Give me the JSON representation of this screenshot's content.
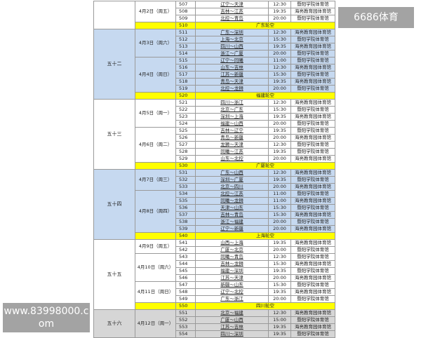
{
  "colors": {
    "blue": "#c6d9f0",
    "white": "#ffffff",
    "gray": "#d6d6d6",
    "rest": "#ffff00"
  },
  "watermarks": {
    "top_right": "6686体育",
    "bottom_left": "www.83998000.com"
  },
  "rounds": [
    {
      "round": "",
      "shade": "white",
      "dates": [
        {
          "date": "4月2日（周五）",
          "games": [
            {
              "no": "507",
              "match": "辽宁～天津",
              "time": "12:30",
              "venue": "暨阳学院体育馆"
            },
            {
              "no": "508",
              "match": "吉林～江苏",
              "time": "19:35",
              "venue": "海亮教育园体育馆"
            },
            {
              "no": "509",
              "match": "北控～青岛",
              "time": "20:00",
              "venue": "暨阳学院体育馆"
            }
          ]
        }
      ],
      "rest": {
        "no": "510",
        "team": "广东轮空"
      }
    },
    {
      "round": "五十二",
      "shade": "blue",
      "dates": [
        {
          "date": "4月3日（周六）",
          "games": [
            {
              "no": "511",
              "match": "广东～深圳",
              "time": "12:30",
              "venue": "海亮教育园体育馆"
            },
            {
              "no": "512",
              "match": "上海～北京",
              "time": "15:30",
              "venue": "暨阳学院体育馆"
            },
            {
              "no": "513",
              "match": "四川～山西",
              "time": "19:35",
              "venue": "海亮教育园体育馆"
            },
            {
              "no": "514",
              "match": "浙江～广厦",
              "time": "20:00",
              "venue": "暨阳学院体育馆"
            }
          ]
        },
        {
          "date": "4月4日（周日）",
          "games": [
            {
              "no": "515",
              "match": "辽宁～同曦",
              "time": "11:00",
              "venue": "暨阳学院体育馆"
            },
            {
              "no": "516",
              "match": "山东～吉林",
              "time": "12:30",
              "venue": "海亮教育园体育馆"
            },
            {
              "no": "517",
              "match": "江苏～新疆",
              "time": "15:30",
              "venue": "暨阳学院体育馆"
            },
            {
              "no": "518",
              "match": "青岛～天津",
              "time": "19:35",
              "venue": "海亮教育园体育馆"
            },
            {
              "no": "519",
              "match": "北控～龙狮",
              "time": "20:00",
              "venue": "暨阳学院体育馆"
            }
          ]
        }
      ],
      "rest": {
        "no": "520",
        "team": "福建轮空"
      }
    },
    {
      "round": "五十三",
      "shade": "white",
      "dates": [
        {
          "date": "4月5日（周一）",
          "games": [
            {
              "no": "521",
              "match": "四川～浙江",
              "time": "12:30",
              "venue": "海亮教育园体育馆"
            },
            {
              "no": "522",
              "match": "北京～广东",
              "time": "15:30",
              "venue": "暨阳学院体育馆"
            },
            {
              "no": "523",
              "match": "深圳～上海",
              "time": "19:35",
              "venue": "海亮教育园体育馆"
            },
            {
              "no": "524",
              "match": "福建～山西",
              "time": "20:00",
              "venue": "暨阳学院体育馆"
            }
          ]
        },
        {
          "date": "4月6日（周二）",
          "games": [
            {
              "no": "525",
              "match": "吉林～辽宁",
              "time": "19:35",
              "venue": "暨阳学院体育馆"
            },
            {
              "no": "526",
              "match": "青岛～新疆",
              "time": "20:00",
              "venue": "海亮教育园体育馆"
            },
            {
              "no": "527",
              "match": "龙狮～天津",
              "time": "12:30",
              "venue": "暨阳学院体育馆"
            },
            {
              "no": "528",
              "match": "同曦～江苏",
              "time": "19:35",
              "venue": "暨阳学院体育馆"
            },
            {
              "no": "529",
              "match": "山东～北控",
              "time": "20:00",
              "venue": "海亮教育园体育馆"
            }
          ]
        }
      ],
      "rest": {
        "no": "530",
        "team": "广厦轮空"
      }
    },
    {
      "round": "五十四",
      "shade": "blue",
      "dates": [
        {
          "date": "4月7日（周三）",
          "games": [
            {
              "no": "531",
              "match": "广东～山西",
              "time": "12:30",
              "venue": "海亮教育园体育馆"
            },
            {
              "no": "532",
              "match": "深圳～广厦",
              "time": "19:35",
              "venue": "暨阳学院体育馆"
            },
            {
              "no": "533",
              "match": "北京～四川",
              "time": "20:00",
              "venue": "海亮教育园体育馆"
            }
          ]
        },
        {
          "date": "4月8日（周四）",
          "games": [
            {
              "no": "534",
              "match": "北控～江苏",
              "time": "11:00",
              "venue": "暨阳学院体育馆"
            },
            {
              "no": "535",
              "match": "同曦～龙狮",
              "time": "11:00",
              "venue": "海亮教育园体育馆"
            },
            {
              "no": "536",
              "match": "天津～山东",
              "time": "15:30",
              "venue": "暨阳学院体育馆"
            },
            {
              "no": "537",
              "match": "吉林～青岛",
              "time": "15:30",
              "venue": "海亮教育园体育馆"
            },
            {
              "no": "538",
              "match": "浙江～福建",
              "time": "20:00",
              "venue": "暨阳学院体育馆"
            },
            {
              "no": "539",
              "match": "辽宁～新疆",
              "time": "20:00",
              "venue": "海亮教育园体育馆"
            }
          ]
        }
      ],
      "rest": {
        "no": "540",
        "team": "上海轮空"
      }
    },
    {
      "round": "五十五",
      "shade": "white",
      "dates": [
        {
          "date": "4月9日（周五）",
          "games": [
            {
              "no": "541",
              "match": "山西～上海",
              "time": "19:35",
              "venue": "海亮教育园体育馆"
            },
            {
              "no": "542",
              "match": "广厦～北京",
              "time": "20:00",
              "venue": "暨阳学院体育馆"
            }
          ]
        },
        {
          "date": "4月10日（周六）",
          "games": [
            {
              "no": "543",
              "match": "同曦～青岛",
              "time": "12:30",
              "venue": "暨阳学院体育馆"
            },
            {
              "no": "544",
              "match": "吉林～龙狮",
              "time": "15:30",
              "venue": "海亮教育园体育馆"
            },
            {
              "no": "545",
              "match": "福建～深圳",
              "time": "19:35",
              "venue": "暨阳学院体育馆"
            },
            {
              "no": "546",
              "match": "江苏～天津",
              "time": "20:00",
              "venue": "海亮教育园体育馆"
            }
          ]
        },
        {
          "date": "4月11日（周日）",
          "games": [
            {
              "no": "547",
              "match": "新疆～山东",
              "time": "15:30",
              "venue": "暨阳学院体育馆"
            },
            {
              "no": "548",
              "match": "辽宁～北控",
              "time": "19:35",
              "venue": "海亮教育园体育馆"
            },
            {
              "no": "549",
              "match": "广东～浙江",
              "time": "20:00",
              "venue": "暨阳学院体育馆"
            }
          ]
        }
      ],
      "rest": {
        "no": "550",
        "team": "四川轮空"
      }
    },
    {
      "round": "五十六",
      "shade": "gray",
      "dates": [
        {
          "date": "4月12日（周一）",
          "games": [
            {
              "no": "551",
              "match": "北京～福建",
              "time": "12:30",
              "venue": "海亮教育园体育馆"
            },
            {
              "no": "552",
              "match": "广厦～山西",
              "time": "15:00",
              "venue": "暨阳学院体育馆"
            },
            {
              "no": "553",
              "match": "江苏～吉林",
              "time": "19:35",
              "venue": "海亮教育园体育馆"
            },
            {
              "no": "554",
              "match": "四川～深圳",
              "time": "19:35",
              "venue": "暨阳学院体育馆"
            }
          ]
        }
      ],
      "rest": null
    }
  ]
}
